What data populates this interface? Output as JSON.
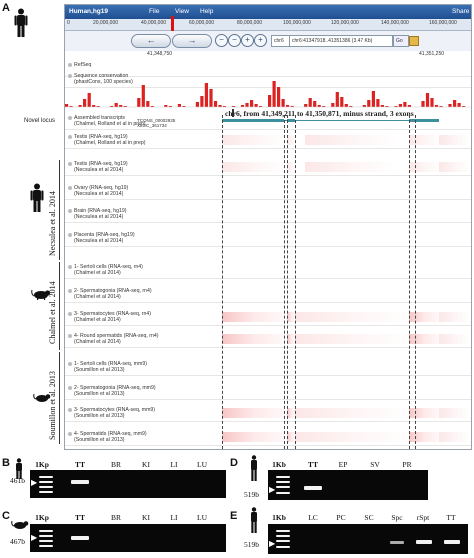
{
  "panels": {
    "A": "A",
    "B": "B",
    "C": "C",
    "D": "D",
    "E": "E"
  },
  "browser": {
    "menu": {
      "genome": "Human,hg19",
      "file": "File",
      "view": "View",
      "help": "Help",
      "share": "Share"
    },
    "ruler_ticks": [
      "0",
      "20,000,000",
      "40,000,000",
      "60,000,000",
      "80,000,000",
      "100,000,000",
      "120,000,000",
      "140,000,000",
      "160,000,000"
    ],
    "chrom": "chr6",
    "location": "chr6:41347918..41351386 (3.47 Kb)",
    "go": "Go",
    "loc_ticks": [
      "41,348,750",
      "41,351,250"
    ],
    "novel_locus_label": "Novel locus",
    "locus_text": "chr6, from 41,349,211 to 41,350,871, minus strand, 3 exons",
    "tracks": [
      {
        "label": "RefSeq"
      },
      {
        "label": "Sequence conservation",
        "sub": "(phastCons, 100 species)"
      },
      {
        "label": "Assembled transcripts",
        "sub": "(Chalmel, Rolland et al in prep)"
      },
      {
        "label": "Testis (RNA-seq, hg19)",
        "sub": "(Chalmel, Rolland et al in prep)"
      },
      {
        "label": "Testis (RNA-seq, hg19)",
        "sub": "(Necsulea et al 2014)"
      },
      {
        "label": "Ovary (RNA-seq, hg19)",
        "sub": "(Necsulea et al 2014)"
      },
      {
        "label": "Brain (RNA-seq, hg19)",
        "sub": "(Necsulea et al 2014)"
      },
      {
        "label": "Placenta (RNA-seq, hg19)",
        "sub": "(Necsulea et al 2014)"
      },
      {
        "label": "1- Sertoli cells (RNA-seq, rn4)",
        "sub": "(Chalmel et al 2014)"
      },
      {
        "label": "2- Spermatogonia (RNA-seq, rn4)",
        "sub": "(Chalmel et al 2014)"
      },
      {
        "label": "3- Spermatocytes (RNA-seq, rn4)",
        "sub": "(Chalmel et al 2014)"
      },
      {
        "label": "4- Round spermatids (RNA-seq, rn4)",
        "sub": "(Chalmel et al 2014)"
      },
      {
        "label": "1- Sertoli cells (RNA-seq, mm9)",
        "sub": "(Soumillon et al 2013)"
      },
      {
        "label": "2- Spermatogonia (RNA-seq, mm9)",
        "sub": "(Soumillon et al 2013)"
      },
      {
        "label": "3- Spermatocytes (RNA-seq, mm9)",
        "sub": "(Soumillon et al 2013)"
      },
      {
        "label": "4- Spermatids (RNA-seq, mm9)",
        "sub": "(Soumillon et al 2013)"
      }
    ],
    "transcript_ids": [
      "TCONS_00002935",
      "XLOC_361734"
    ]
  },
  "side_labels": {
    "necsulea": "Necsulea et al. 2014",
    "chalmel": "Chalmel et al. 2014",
    "soumillon": "Soumillon et al. 2013"
  },
  "gel_B": {
    "lanes": [
      "1Kp",
      "TT",
      "BR",
      "KI",
      "LI",
      "LU"
    ],
    "size": "461b"
  },
  "gel_C": {
    "lanes": [
      "1Kp",
      "TT",
      "BR",
      "KI",
      "LI",
      "LU"
    ],
    "size": "467b"
  },
  "gel_D": {
    "lanes": [
      "1Kb",
      "TT",
      "EP",
      "SV",
      "PR"
    ],
    "size": "519b"
  },
  "gel_E": {
    "lanes": [
      "1Kb",
      "LC",
      "PC",
      "SC",
      "Spc",
      "rSpt",
      "TT"
    ],
    "size": "519b"
  }
}
